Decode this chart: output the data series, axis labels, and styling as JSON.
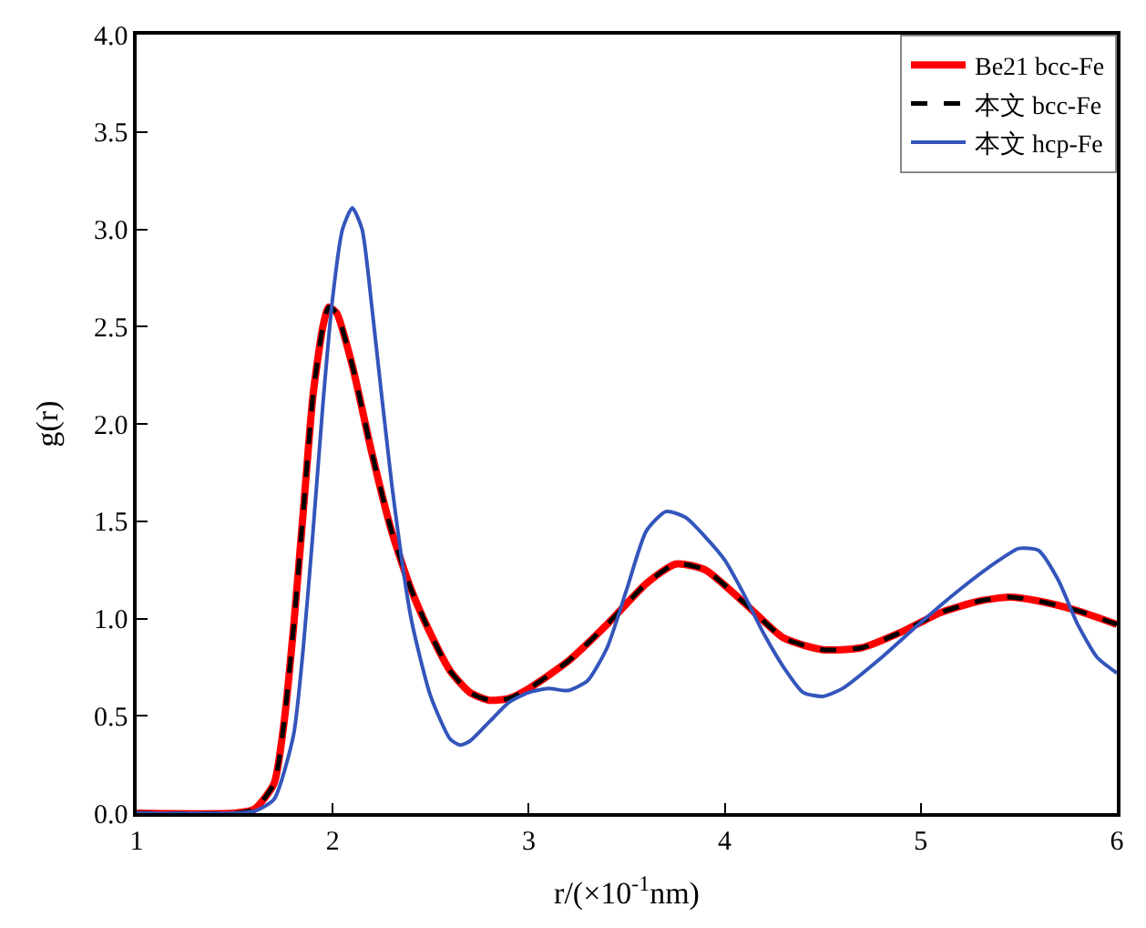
{
  "chart_data": {
    "type": "line",
    "xlabel": "r/(×10$^{-1}$nm)",
    "ylabel": "g(r)",
    "xlim": [
      1,
      6
    ],
    "xticks": [
      1,
      2,
      3,
      4,
      5,
      6
    ],
    "ylim": [
      0,
      4
    ],
    "yticks": [
      {
        "value": 0,
        "label": "0.0"
      },
      {
        "value": 0.5,
        "label": "0.5"
      },
      {
        "value": 1,
        "label": "1.0"
      },
      {
        "value": 1.5,
        "label": "1.5"
      },
      {
        "value": 2,
        "label": "2.0"
      },
      {
        "value": 2.5,
        "label": "2.5"
      },
      {
        "value": 3,
        "label": "3.0"
      },
      {
        "value": 3.5,
        "label": "3.5"
      },
      {
        "value": 4,
        "label": "4.0"
      }
    ],
    "legend": "top right",
    "series": [
      {
        "name": "Be21 bcc-Fe",
        "color": "#ff0000",
        "line_style": "solid",
        "x": [
          1.0,
          1.5,
          1.6,
          1.7,
          1.75,
          1.8,
          1.85,
          1.9,
          1.95,
          1.98,
          2.02,
          2.1,
          2.2,
          2.3,
          2.4,
          2.5,
          2.6,
          2.7,
          2.8,
          2.9,
          3.0,
          3.2,
          3.4,
          3.6,
          3.75,
          3.9,
          4.1,
          4.3,
          4.5,
          4.7,
          4.9,
          5.1,
          5.3,
          5.45,
          5.6,
          5.8,
          6.0
        ],
        "values": [
          0,
          0,
          0.02,
          0.15,
          0.45,
          0.95,
          1.55,
          2.15,
          2.5,
          2.6,
          2.57,
          2.3,
          1.85,
          1.45,
          1.15,
          0.92,
          0.73,
          0.62,
          0.58,
          0.59,
          0.64,
          0.78,
          0.97,
          1.18,
          1.28,
          1.25,
          1.08,
          0.9,
          0.84,
          0.85,
          0.93,
          1.03,
          1.09,
          1.11,
          1.09,
          1.04,
          0.97
        ]
      },
      {
        "name": "本文 bcc-Fe",
        "color": "#000000",
        "line_style": "dashed",
        "x": [
          1.0,
          1.5,
          1.6,
          1.7,
          1.75,
          1.8,
          1.85,
          1.9,
          1.95,
          1.98,
          2.02,
          2.1,
          2.2,
          2.3,
          2.4,
          2.5,
          2.6,
          2.7,
          2.8,
          2.9,
          3.0,
          3.2,
          3.4,
          3.6,
          3.75,
          3.9,
          4.1,
          4.3,
          4.5,
          4.7,
          4.9,
          5.1,
          5.3,
          5.45,
          5.6,
          5.8,
          6.0
        ],
        "values": [
          0,
          0,
          0.02,
          0.15,
          0.45,
          0.95,
          1.55,
          2.15,
          2.5,
          2.6,
          2.57,
          2.3,
          1.85,
          1.45,
          1.15,
          0.92,
          0.73,
          0.62,
          0.58,
          0.59,
          0.64,
          0.78,
          0.97,
          1.18,
          1.28,
          1.25,
          1.08,
          0.9,
          0.84,
          0.85,
          0.93,
          1.03,
          1.09,
          1.11,
          1.09,
          1.04,
          0.97
        ]
      },
      {
        "name": "本文 hcp-Fe",
        "color": "#3355bb",
        "line_style": "solid",
        "x": [
          1.0,
          1.5,
          1.6,
          1.7,
          1.8,
          1.85,
          1.9,
          1.95,
          2.0,
          2.05,
          2.1,
          2.15,
          2.2,
          2.3,
          2.4,
          2.5,
          2.6,
          2.65,
          2.7,
          2.8,
          2.9,
          3.0,
          3.1,
          3.2,
          3.3,
          3.4,
          3.5,
          3.6,
          3.7,
          3.8,
          3.9,
          4.0,
          4.1,
          4.2,
          4.3,
          4.4,
          4.5,
          4.6,
          4.8,
          5.0,
          5.2,
          5.4,
          5.5,
          5.6,
          5.7,
          5.8,
          5.9,
          6.0
        ],
        "values": [
          0,
          0,
          0.01,
          0.07,
          0.4,
          0.85,
          1.45,
          2.1,
          2.65,
          3.0,
          3.11,
          3.0,
          2.6,
          1.7,
          1.0,
          0.6,
          0.38,
          0.35,
          0.37,
          0.47,
          0.57,
          0.62,
          0.64,
          0.63,
          0.68,
          0.85,
          1.15,
          1.45,
          1.55,
          1.52,
          1.42,
          1.3,
          1.12,
          0.92,
          0.75,
          0.62,
          0.6,
          0.64,
          0.8,
          0.98,
          1.15,
          1.3,
          1.36,
          1.35,
          1.2,
          0.97,
          0.8,
          0.72
        ]
      }
    ]
  }
}
